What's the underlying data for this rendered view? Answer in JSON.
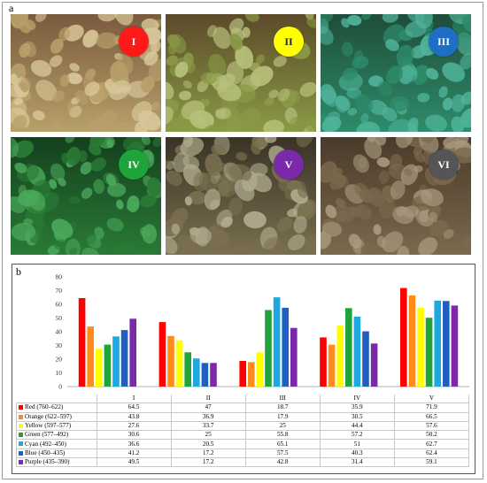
{
  "panel_a": {
    "label": "a",
    "photos": [
      {
        "numeral": "I",
        "badge_color": "#ff1a1a",
        "text_color": "#ffffff",
        "bg": [
          "#7a5a3e",
          "#b8a06a",
          "#d8c89a"
        ]
      },
      {
        "numeral": "II",
        "badge_color": "#ffff00",
        "text_color": "#222222",
        "bg": [
          "#5c4a2a",
          "#8a9a46",
          "#b6c07a"
        ]
      },
      {
        "numeral": "III",
        "badge_color": "#1e6fc4",
        "text_color": "#ffffff",
        "bg": [
          "#1f4d3a",
          "#2e8c6a",
          "#4fb39a"
        ]
      },
      {
        "numeral": "IV",
        "badge_color": "#1fa43c",
        "text_color": "#ffffff",
        "bg": [
          "#14401e",
          "#2a7a36",
          "#4aa85a"
        ]
      },
      {
        "numeral": "V",
        "badge_color": "#7a2aa8",
        "text_color": "#ffffff",
        "bg": [
          "#3a3326",
          "#7a7050",
          "#b0ab8e"
        ]
      },
      {
        "numeral": "VI",
        "badge_color": "#555555",
        "text_color": "#ffffff",
        "bg": [
          "#4a3a2a",
          "#7a6a4e",
          "#a89a7e"
        ]
      }
    ]
  },
  "panel_b": {
    "label": "b",
    "chart_data": {
      "type": "bar",
      "categories": [
        "I",
        "II",
        "III",
        "IV",
        "V"
      ],
      "ylim": [
        0,
        80
      ],
      "yticks": [
        "0",
        "10",
        "20",
        "30",
        "40",
        "50",
        "60",
        "70",
        "80"
      ],
      "series": [
        {
          "name": "Red (760–622)",
          "color": "#ff0000",
          "values": [
            64.5,
            47,
            18.7,
            35.9,
            71.9
          ]
        },
        {
          "name": "Orange (622–597)",
          "color": "#ff8c1a",
          "values": [
            43.8,
            36.9,
            17.9,
            30.5,
            66.5
          ]
        },
        {
          "name": "Yellow (597–577)",
          "color": "#ffff00",
          "values": [
            27.6,
            33.7,
            25,
            44.4,
            57.6
          ]
        },
        {
          "name": "Green (577–492)",
          "color": "#1fa43c",
          "values": [
            30.6,
            25,
            55.8,
            57.2,
            50.2
          ]
        },
        {
          "name": "Cyan (492–450)",
          "color": "#1ea8e0",
          "values": [
            36.6,
            20.5,
            65.1,
            51,
            62.7
          ]
        },
        {
          "name": "Blue (450–435)",
          "color": "#1f5fc0",
          "values": [
            41.2,
            17.2,
            57.5,
            40.3,
            62.4
          ]
        },
        {
          "name": "Purple (435–390)",
          "color": "#7a2aa8",
          "values": [
            49.5,
            17.2,
            42.8,
            31.4,
            59.1
          ]
        }
      ]
    },
    "table": {
      "rows": [
        {
          "label": "Red (760–622)",
          "cells": [
            "64.5",
            "47",
            "18.7",
            "35.9",
            "71.9"
          ]
        },
        {
          "label": "Orange (622–597)",
          "cells": [
            "43.8",
            "36.9",
            "17.9",
            "30.5",
            "66.5"
          ]
        },
        {
          "label": "Yellow (597–577)",
          "cells": [
            "27.6",
            "33.7",
            "25",
            "44.4",
            "57.6"
          ]
        },
        {
          "label": "Green (577–492)",
          "cells": [
            "30.6",
            "25",
            "55.8",
            "57.2",
            "50.2"
          ]
        },
        {
          "label": "Cyan (492–450)",
          "cells": [
            "36.6",
            "20.5",
            "65.1",
            "51",
            "62.7"
          ]
        },
        {
          "label": "Blue (450–435)",
          "cells": [
            "41.2",
            "17.2",
            "57.5",
            "40.3",
            "62.4"
          ]
        },
        {
          "label": "Purple (435–390)",
          "cells": [
            "49.5",
            "17.2",
            "42.8",
            "31.4",
            "59.1"
          ]
        }
      ]
    }
  }
}
